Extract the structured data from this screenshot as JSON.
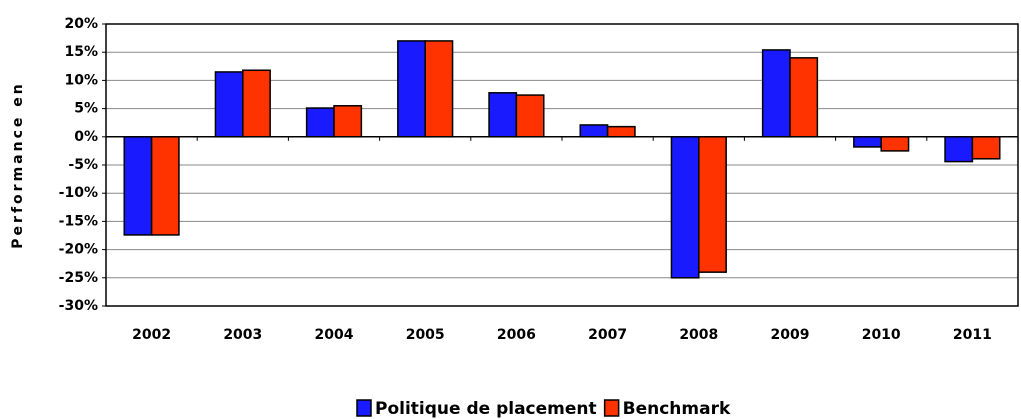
{
  "chart_data": {
    "type": "bar",
    "ylabel": "Performance en",
    "categories": [
      "2002",
      "2003",
      "2004",
      "2005",
      "2006",
      "2007",
      "2008",
      "2009",
      "2010",
      "2011"
    ],
    "series": [
      {
        "name": "Politique de placement",
        "color": "#1a1aff",
        "values": [
          -17.4,
          11.5,
          5.1,
          17.0,
          7.8,
          2.1,
          -25.0,
          15.4,
          -1.8,
          -4.4
        ]
      },
      {
        "name": "Benchmark",
        "color": "#ff3300",
        "values": [
          -17.4,
          11.8,
          5.5,
          17.0,
          7.4,
          1.8,
          -24.0,
          14.0,
          -2.5,
          -3.9
        ]
      }
    ],
    "ylim": [
      -30,
      20
    ],
    "yticks": [
      {
        "value": -30,
        "label": "-30%"
      },
      {
        "value": -25,
        "label": "-25%"
      },
      {
        "value": -20,
        "label": "-20%"
      },
      {
        "value": -15,
        "label": "-15%"
      },
      {
        "value": -10,
        "label": "-10%"
      },
      {
        "value": -5,
        "label": "-5%"
      },
      {
        "value": 0,
        "label": "0%"
      },
      {
        "value": 5,
        "label": "5%"
      },
      {
        "value": 10,
        "label": "10%"
      },
      {
        "value": 15,
        "label": "15%"
      },
      {
        "value": 20,
        "label": "20%"
      }
    ],
    "grid": true
  }
}
